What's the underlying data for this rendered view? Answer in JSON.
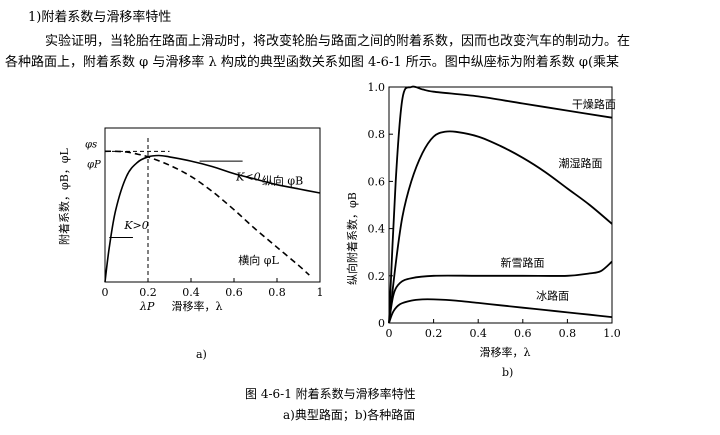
{
  "text": {
    "heading": "1)附着系数与滑移率特性",
    "para1": "实验证明，当轮胎在路面上滑动时，将改变轮胎与路面之间的附着系数，因而也改变汽车的制动力。在",
    "para2": "各种路面上，附着系数 φ 与滑移率 λ 构成的典型函数关系如图 4-6-1 所示。图中纵座标为附着系数 φ(乘某",
    "fig_caption": "图 4-6-1    附着系数与滑移率特性",
    "fig_sub": "a)典型路面；b)各种路面"
  },
  "chart_data": [
    {
      "type": "line",
      "panel_label": "a)",
      "xlabel": "滑移率，λ",
      "ylabel": "附着系数，φB，φL",
      "xlim": [
        0,
        1
      ],
      "ylim": [
        0,
        1
      ],
      "x_ticks": [
        "0",
        "0.2",
        "0.4",
        "0.6",
        "0.8",
        "1"
      ],
      "x_tick_values": [
        0,
        0.2,
        0.4,
        0.6,
        0.8,
        1
      ],
      "y_axis_marks": [
        "φP",
        "φs"
      ],
      "x_axis_mark": "λP",
      "annotations": [
        "K>0",
        "K<0"
      ],
      "series": [
        {
          "name": "纵向 φB",
          "style": "solid",
          "x": [
            0,
            0.02,
            0.05,
            0.1,
            0.15,
            0.2,
            0.25,
            0.3,
            0.4,
            0.5,
            0.6,
            0.7,
            0.8,
            0.9,
            1.0
          ],
          "y": [
            0,
            0.25,
            0.52,
            0.76,
            0.86,
            0.9,
            0.91,
            0.9,
            0.87,
            0.83,
            0.78,
            0.74,
            0.7,
            0.67,
            0.64
          ]
        },
        {
          "name": "横向 φL",
          "style": "dashed",
          "x": [
            0,
            0.05,
            0.1,
            0.15,
            0.2,
            0.3,
            0.4,
            0.5,
            0.6,
            0.7,
            0.8,
            0.9,
            0.95
          ],
          "y": [
            0.94,
            0.94,
            0.935,
            0.92,
            0.9,
            0.84,
            0.76,
            0.65,
            0.52,
            0.38,
            0.25,
            0.12,
            0.05
          ]
        }
      ]
    },
    {
      "type": "line",
      "panel_label": "b)",
      "xlabel": "滑移率，λ",
      "ylabel": "纵向附着系数，φB",
      "xlim": [
        0,
        1
      ],
      "ylim": [
        0,
        1
      ],
      "x_ticks": [
        "0",
        "0.2",
        "0.4",
        "0.6",
        "0.8",
        "1.0"
      ],
      "x_tick_values": [
        0,
        0.2,
        0.4,
        0.6,
        0.8,
        1.0
      ],
      "y_ticks": [
        "0",
        "0.2",
        "0.4",
        "0.6",
        "0.8",
        "1.0"
      ],
      "y_tick_values": [
        0,
        0.2,
        0.4,
        0.6,
        0.8,
        1.0
      ],
      "series": [
        {
          "name": "干燥路面",
          "x": [
            0,
            0.03,
            0.06,
            0.1,
            0.15,
            0.2,
            0.4,
            0.6,
            0.8,
            1.0
          ],
          "y": [
            0,
            0.6,
            0.95,
            1.0,
            0.99,
            0.98,
            0.96,
            0.93,
            0.9,
            0.87
          ],
          "label_pos": [
            0.82,
            0.91
          ]
        },
        {
          "name": "潮湿路面",
          "x": [
            0,
            0.03,
            0.06,
            0.1,
            0.15,
            0.2,
            0.25,
            0.3,
            0.4,
            0.5,
            0.6,
            0.7,
            0.8,
            0.9,
            1.0
          ],
          "y": [
            0,
            0.25,
            0.45,
            0.6,
            0.72,
            0.79,
            0.81,
            0.81,
            0.79,
            0.75,
            0.7,
            0.64,
            0.57,
            0.5,
            0.42
          ],
          "label_pos": [
            0.76,
            0.66
          ]
        },
        {
          "name": "新雪路面",
          "x": [
            0,
            0.02,
            0.05,
            0.1,
            0.2,
            0.4,
            0.6,
            0.8,
            0.9,
            0.95,
            1.0
          ],
          "y": [
            0,
            0.12,
            0.17,
            0.19,
            0.2,
            0.2,
            0.2,
            0.2,
            0.21,
            0.22,
            0.26
          ],
          "label_pos": [
            0.5,
            0.24
          ]
        },
        {
          "name": "冰路面",
          "x": [
            0,
            0.02,
            0.05,
            0.1,
            0.15,
            0.2,
            0.3,
            0.4,
            0.5,
            0.6,
            0.7,
            0.8,
            0.9,
            1.0
          ],
          "y": [
            0,
            0.05,
            0.08,
            0.095,
            0.1,
            0.1,
            0.095,
            0.085,
            0.075,
            0.065,
            0.055,
            0.045,
            0.035,
            0.025
          ],
          "label_pos": [
            0.66,
            0.1
          ]
        }
      ]
    }
  ]
}
